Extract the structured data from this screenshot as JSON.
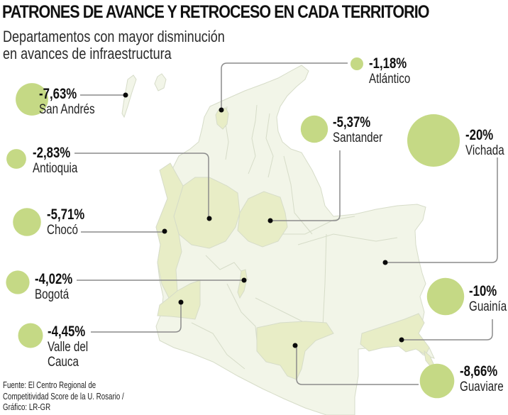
{
  "title": "PATRONES DE AVANCE Y RETROCESO EN CADA TERRITORIO",
  "subtitle_lines": [
    "Departamentos con mayor disminución",
    "en avances de infraestructura"
  ],
  "colors": {
    "bubble": "#c5d985",
    "highlight_region": "#e8edc6",
    "base_region": "#f2f5e8",
    "border": "#d6dcc8",
    "leader": "#9a9a9a"
  },
  "departments": [
    {
      "id": "san-andres",
      "value": "-7,63%",
      "name": "San Andrés",
      "change": -7.63
    },
    {
      "id": "antioquia",
      "value": "-2,83%",
      "name": "Antioquia",
      "change": -2.83
    },
    {
      "id": "choco",
      "value": "-5,71%",
      "name": "Chocó",
      "change": -5.71
    },
    {
      "id": "bogota",
      "value": "-4,02%",
      "name": "Bogotá",
      "change": -4.02
    },
    {
      "id": "valle-del-cauca",
      "value": "-4,45%",
      "name_lines": [
        "Valle del",
        "Cauca"
      ],
      "change": -4.45
    },
    {
      "id": "atlantico",
      "value": "-1,18%",
      "name": "Atlántico",
      "change": -1.18
    },
    {
      "id": "santander",
      "value": "-5,37%",
      "name": "Santander",
      "change": -5.37
    },
    {
      "id": "vichada",
      "value": "-20%",
      "name": "Vichada",
      "change": -20
    },
    {
      "id": "guainia",
      "value": "-10%",
      "name": "Guainía",
      "change": -10
    },
    {
      "id": "guaviare",
      "value": "-8,66%",
      "name": "Guaviare",
      "change": -8.66
    }
  ],
  "source_lines": [
    "Fuente: El Centro Regional de",
    "Competitividad Score de la U. Rosario /",
    "Gráfico: LR-GR"
  ]
}
